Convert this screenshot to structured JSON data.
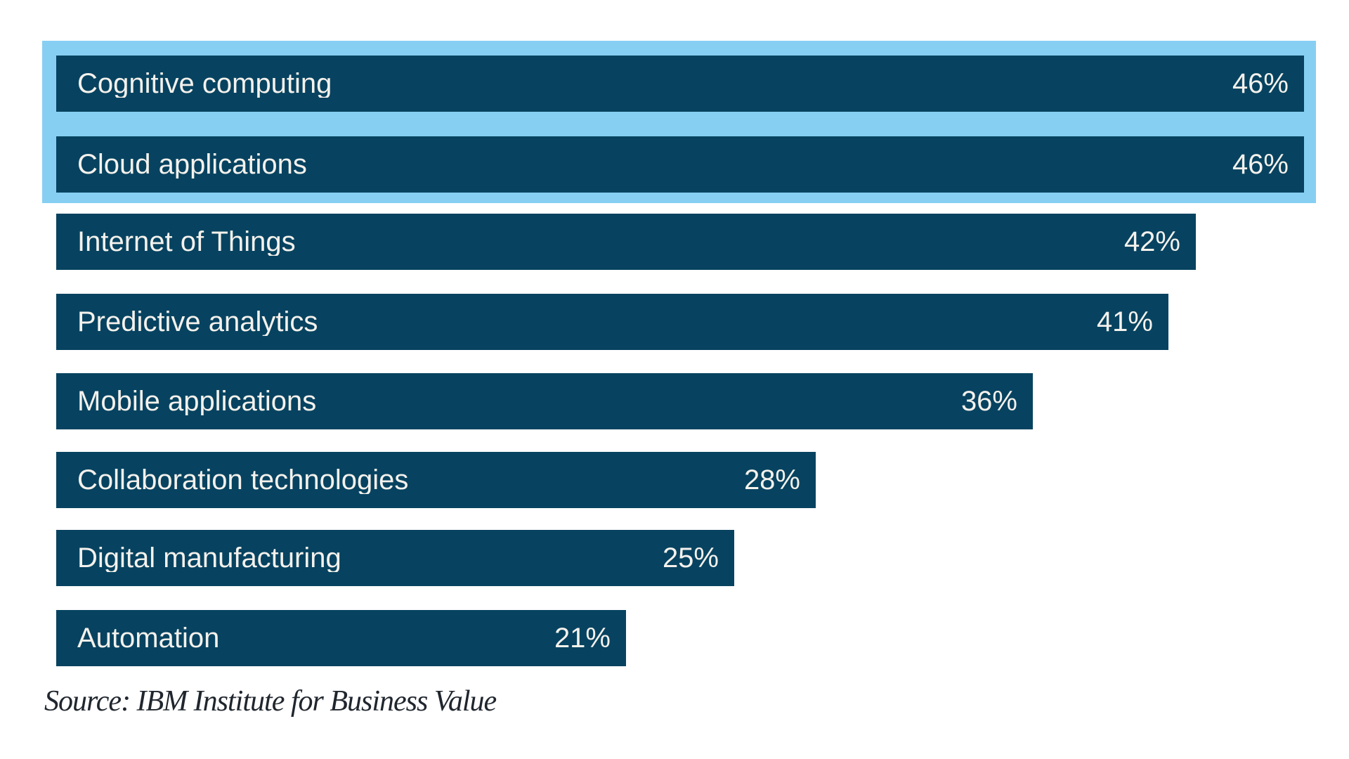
{
  "chart_data": {
    "type": "bar",
    "orientation": "horizontal",
    "categories": [
      "Cognitive computing",
      "Cloud applications",
      "Internet of Things",
      "Predictive analytics",
      "Mobile applications",
      "Collaboration technologies",
      "Digital manufacturing",
      "Automation"
    ],
    "values": [
      46,
      46,
      42,
      41,
      36,
      28,
      25,
      21
    ],
    "value_labels": [
      "46%",
      "46%",
      "42%",
      "41%",
      "36%",
      "28%",
      "25%",
      "21%"
    ],
    "unit": "%",
    "xlim": [
      0,
      46
    ],
    "highlighted_indices": [
      0,
      1
    ],
    "legend": "none",
    "grid": false,
    "source": "Source: IBM Institute for Business Value",
    "colors": {
      "bar": "#074360",
      "bar_text": "#f4f1ec",
      "highlight": "#86cff3",
      "background": "#ffffff",
      "source_text": "#20262e"
    }
  }
}
